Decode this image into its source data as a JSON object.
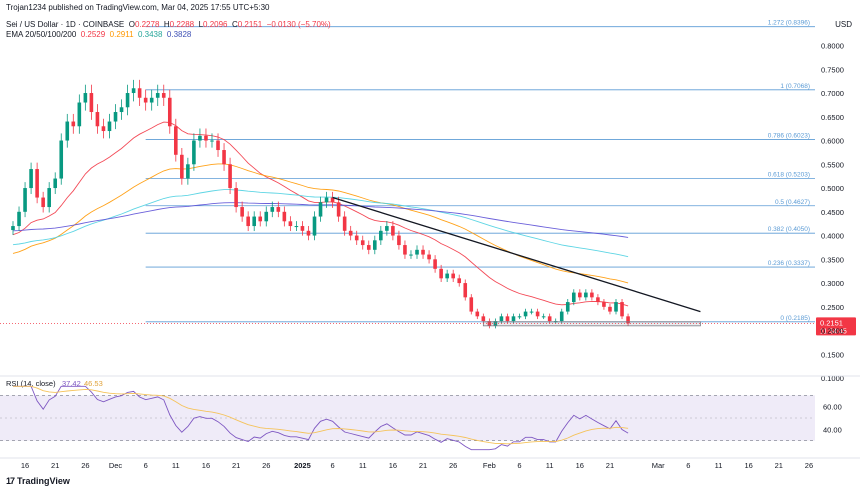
{
  "header": {
    "published": "Trojan1234 published on TradingView.com, Mar 04, 2025 17:55 UTC+5:30",
    "symbol": "Sei / US Dollar · 1D · COINBASE",
    "ohlc": {
      "O": "0.2278",
      "H": "0.2288",
      "L": "0.2096",
      "C": "0.2151",
      "change": "−0.0130 (−5.70%)"
    },
    "ema_label": "EMA 20/50/100/200",
    "ema_values": [
      "0.2529",
      "0.2911",
      "0.3438",
      "0.3828"
    ]
  },
  "currency": "USD",
  "price_tag": {
    "value": "0.2151",
    "countdown": "11:34:45"
  },
  "brand": {
    "logo": "17",
    "name": "TradingView"
  },
  "colors": {
    "up": "#089981",
    "down": "#f23645",
    "fib": "#5b9bd5",
    "ema20": "#f23645",
    "ema50": "#ff9800",
    "ema100": "#4dd0e1",
    "ema200": "#5b4fd6",
    "rsi": "#7e57c2",
    "rsi_ma": "#f5c35b"
  },
  "chart_data": {
    "type": "candlestick",
    "title": "Sei / US Dollar · 1D · COINBASE",
    "y_axis": {
      "ticks": [
        "0.8000",
        "0.7500",
        "0.7000",
        "0.6500",
        "0.6000",
        "0.5500",
        "0.5000",
        "0.4500",
        "0.4000",
        "0.3500",
        "0.3000",
        "0.2500",
        "0.2000",
        "0.1500",
        "0.1000"
      ],
      "range": [
        0.1,
        0.86
      ]
    },
    "x_axis": {
      "ticks": [
        "16",
        "21",
        "26",
        "Dec",
        "6",
        "11",
        "16",
        "21",
        "26",
        "2025",
        "6",
        "11",
        "16",
        "21",
        "26",
        "Feb",
        "6",
        "11",
        "16",
        "21",
        "Mar",
        "6",
        "11",
        "16",
        "21",
        "26"
      ],
      "start_date": "2024-11-14"
    },
    "fib_levels": [
      {
        "label": "1.272 (0.8396)",
        "value": 0.8396
      },
      {
        "label": "1 (0.7068)",
        "value": 0.7068
      },
      {
        "label": "0.786 (0.6023)",
        "value": 0.6023
      },
      {
        "label": "0.618 (0.5203)",
        "value": 0.5203
      },
      {
        "label": "0.5 (0.4627)",
        "value": 0.4627
      },
      {
        "label": "0.382 (0.4050)",
        "value": 0.405
      },
      {
        "label": "0.236 (0.3337)",
        "value": 0.3337
      },
      {
        "label": "0 (0.2185)",
        "value": 0.2185
      }
    ],
    "trendline": {
      "from": {
        "date": "2025-01-06",
        "price": 0.48
      },
      "to": {
        "date": "2025-03-08",
        "price": 0.24
      }
    },
    "support_box": {
      "from": "2025-01-31",
      "to": "2025-03-08",
      "low": 0.21,
      "high": 0.2185
    },
    "closes": [
      0.42,
      0.45,
      0.5,
      0.54,
      0.48,
      0.46,
      0.5,
      0.52,
      0.6,
      0.64,
      0.63,
      0.68,
      0.7,
      0.66,
      0.63,
      0.62,
      0.64,
      0.66,
      0.67,
      0.7,
      0.71,
      0.69,
      0.68,
      0.69,
      0.7,
      0.69,
      0.63,
      0.57,
      0.52,
      0.55,
      0.6,
      0.61,
      0.6,
      0.6,
      0.58,
      0.55,
      0.5,
      0.46,
      0.44,
      0.42,
      0.44,
      0.43,
      0.45,
      0.46,
      0.45,
      0.43,
      0.42,
      0.42,
      0.41,
      0.4,
      0.44,
      0.47,
      0.48,
      0.47,
      0.44,
      0.41,
      0.4,
      0.39,
      0.38,
      0.37,
      0.39,
      0.41,
      0.42,
      0.4,
      0.38,
      0.36,
      0.36,
      0.37,
      0.36,
      0.35,
      0.33,
      0.31,
      0.32,
      0.31,
      0.3,
      0.27,
      0.24,
      0.23,
      0.22,
      0.21,
      0.22,
      0.23,
      0.22,
      0.23,
      0.23,
      0.24,
      0.24,
      0.23,
      0.23,
      0.22,
      0.22,
      0.24,
      0.26,
      0.28,
      0.27,
      0.28,
      0.27,
      0.26,
      0.25,
      0.24,
      0.26,
      0.23,
      0.2151
    ],
    "series": [
      {
        "name": "EMA 20",
        "current": 0.2529
      },
      {
        "name": "EMA 50",
        "current": 0.2911
      },
      {
        "name": "EMA 100",
        "current": 0.3438
      },
      {
        "name": "EMA 200",
        "current": 0.3828
      }
    ],
    "rsi": {
      "label": "RSI (14, close)",
      "value": "37.42",
      "ma_value": "46.53",
      "ticks": [
        "60.00",
        "40.00"
      ],
      "bands": [
        70,
        30
      ]
    }
  }
}
